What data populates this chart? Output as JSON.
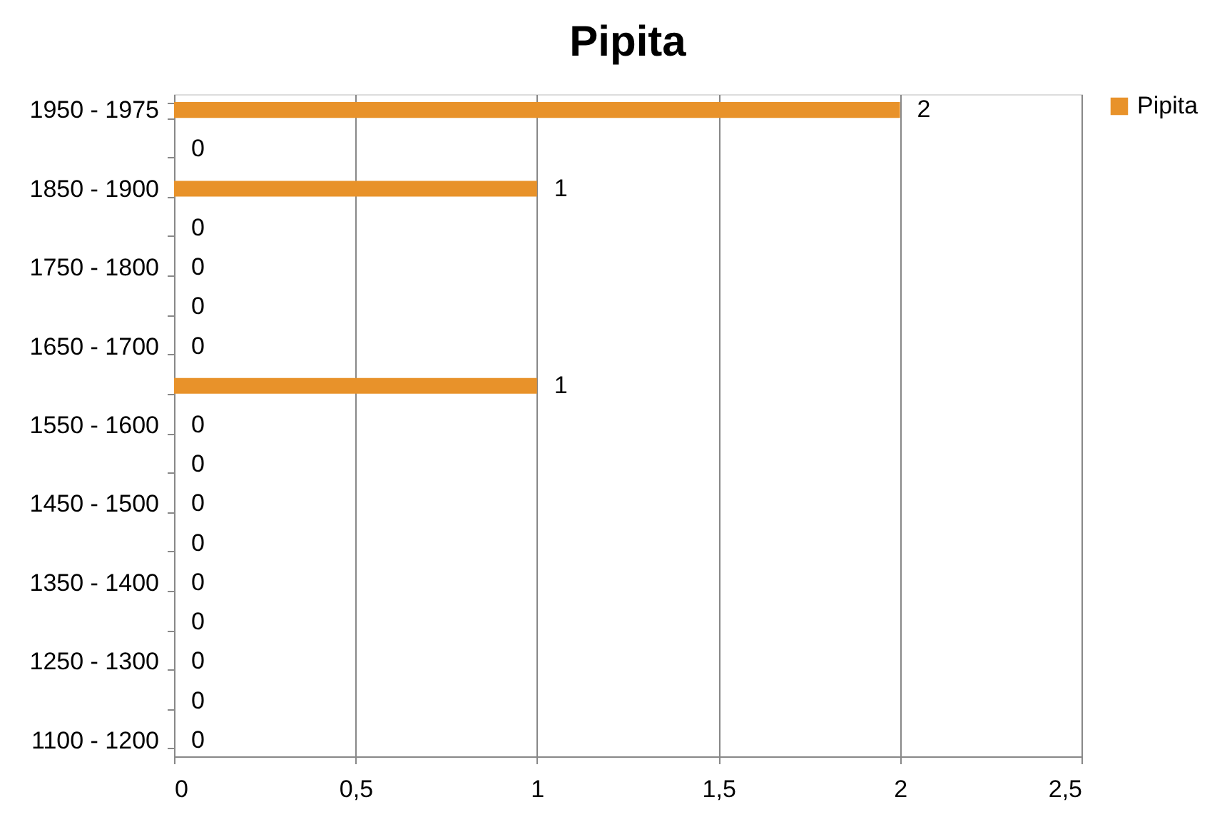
{
  "chart_data": {
    "type": "bar",
    "orientation": "horizontal",
    "title": "Pipita",
    "categories": [
      "1950 - 1975",
      null,
      "1850 - 1900",
      null,
      "1750 - 1800",
      null,
      "1650 - 1700",
      null,
      "1550 - 1600",
      null,
      "1450 - 1500",
      null,
      "1350 - 1400",
      null,
      "1250 - 1300",
      null,
      "1100 - 1200"
    ],
    "series": [
      {
        "name": "Pipita",
        "color": "#e8922a",
        "values": [
          2,
          0,
          1,
          0,
          0,
          0,
          0,
          1,
          0,
          0,
          0,
          0,
          0,
          0,
          0,
          0,
          0
        ]
      }
    ],
    "xlim": [
      0,
      2.5
    ],
    "xticks": [
      0,
      {
        "value": 0.5,
        "label": "0,5"
      },
      1,
      {
        "value": 1.5,
        "label": "1,5"
      },
      2,
      {
        "value": 2.5,
        "label": "2,5"
      }
    ],
    "grid": "x",
    "legend": "right",
    "data_labels": true
  }
}
